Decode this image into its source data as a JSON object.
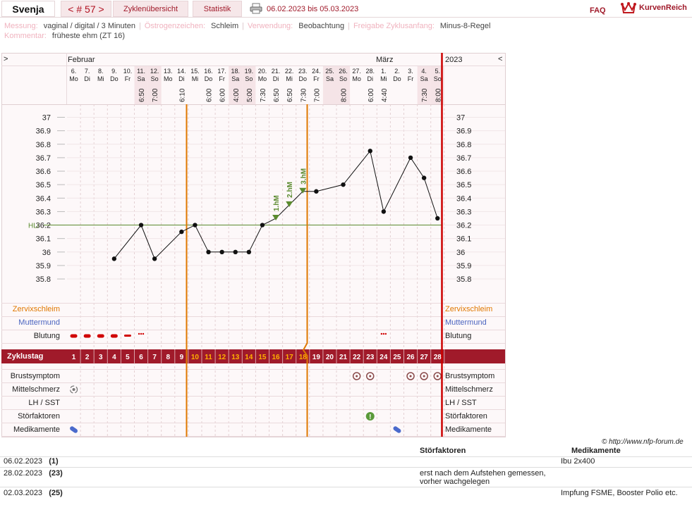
{
  "header": {
    "user": "Svenja",
    "cycle_nav": "< # 57 >",
    "tab_overview": "Zyklenübersicht",
    "tab_stats": "Statistik",
    "date_range": "06.02.2023 bis 05.03.2023",
    "faq": "FAQ",
    "brand": "KurvenReich"
  },
  "info": {
    "messung_label": "Messung:",
    "messung_value": "vaginal / digital / 3 Minuten",
    "oestrogen_label": "Östrogenzeichen:",
    "oestrogen_value": "Schleim",
    "verwendung_label": "Verwendung:",
    "verwendung_value": "Beobachtung",
    "freigabe_label": "Freigabe Zyklusanfang:",
    "freigabe_value": "Minus-8-Regel",
    "kommentar_label": "Kommentar:",
    "kommentar_value": "früheste ehm (ZT 16)"
  },
  "chart_nav": {
    "prev": ">",
    "next": "<",
    "year": "2023"
  },
  "months": [
    "Februar",
    "März"
  ],
  "colors": {
    "accent": "#a01a2a",
    "coverline": "#5a8a2e",
    "marker": "#e07800",
    "bleeding": "#d00000",
    "weekend": "#f5e4e7"
  },
  "days": [
    {
      "date": "6.",
      "wd": "Mo",
      "time": "",
      "cd": "1"
    },
    {
      "date": "7.",
      "wd": "Di",
      "time": "",
      "cd": "2"
    },
    {
      "date": "8.",
      "wd": "Mi",
      "time": "",
      "cd": "3"
    },
    {
      "date": "9.",
      "wd": "Do",
      "time": "",
      "cd": "4"
    },
    {
      "date": "10.",
      "wd": "Fr",
      "time": "",
      "cd": "5"
    },
    {
      "date": "11.",
      "wd": "Sa",
      "time": "6:50",
      "cd": "6"
    },
    {
      "date": "12.",
      "wd": "So",
      "time": "7:00",
      "cd": "7"
    },
    {
      "date": "13.",
      "wd": "Mo",
      "time": "",
      "cd": "8"
    },
    {
      "date": "14.",
      "wd": "Di",
      "time": "6:10",
      "cd": "9"
    },
    {
      "date": "15.",
      "wd": "Mi",
      "time": "",
      "cd": "10"
    },
    {
      "date": "16.",
      "wd": "Do",
      "time": "6:00",
      "cd": "11"
    },
    {
      "date": "17.",
      "wd": "Fr",
      "time": "6:00",
      "cd": "12"
    },
    {
      "date": "18.",
      "wd": "Sa",
      "time": "4:00",
      "cd": "13"
    },
    {
      "date": "19.",
      "wd": "So",
      "time": "5:00",
      "cd": "14"
    },
    {
      "date": "20.",
      "wd": "Mo",
      "time": "7:30",
      "cd": "15"
    },
    {
      "date": "21.",
      "wd": "Di",
      "time": "6:50",
      "cd": "16"
    },
    {
      "date": "22.",
      "wd": "Mi",
      "time": "6:50",
      "cd": "17"
    },
    {
      "date": "23.",
      "wd": "Do",
      "time": "7:30",
      "cd": "18"
    },
    {
      "date": "24.",
      "wd": "Fr",
      "time": "7:00",
      "cd": "19"
    },
    {
      "date": "25.",
      "wd": "Sa",
      "time": "",
      "cd": "20"
    },
    {
      "date": "26.",
      "wd": "So",
      "time": "8:00",
      "cd": "21"
    },
    {
      "date": "27.",
      "wd": "Mo",
      "time": "",
      "cd": "22"
    },
    {
      "date": "28.",
      "wd": "Di",
      "time": "6:00",
      "cd": "23"
    },
    {
      "date": "1.",
      "wd": "Mi",
      "time": "4:40",
      "cd": "24"
    },
    {
      "date": "2.",
      "wd": "Do",
      "time": "",
      "cd": "25"
    },
    {
      "date": "3.",
      "wd": "Fr",
      "time": "",
      "cd": "26"
    },
    {
      "date": "4.",
      "wd": "Sa",
      "time": "7:30",
      "cd": "27"
    },
    {
      "date": "5.",
      "wd": "So",
      "time": "8:00",
      "cd": "28"
    }
  ],
  "chart_data": {
    "type": "line",
    "y_ticks": [
      "37",
      "36.9",
      "36.8",
      "36.7",
      "36.6",
      "36.5",
      "36.4",
      "36.3",
      "36.2",
      "36.1",
      "36",
      "35.9",
      "35.8"
    ],
    "ylim": [
      35.8,
      37.0
    ],
    "coverline_label": "HLi",
    "coverline": 36.2,
    "series": [
      {
        "values": [
          null,
          null,
          null,
          35.95,
          null,
          36.2,
          35.95,
          null,
          36.15,
          36.2,
          36.0,
          36.0,
          36.0,
          36.0,
          36.2,
          36.25,
          36.35,
          36.45,
          36.45,
          null,
          36.5,
          null,
          36.75,
          36.3,
          null,
          36.7,
          36.55,
          36.25
        ]
      }
    ],
    "higher_measurements": [
      {
        "day": 16,
        "label": "1.hM"
      },
      {
        "day": 17,
        "label": "2.hM"
      },
      {
        "day": 18,
        "label": "3.hM"
      }
    ]
  },
  "rows": {
    "zervix": "Zervixschleim",
    "muttermund": "Muttermund",
    "blutung": "Blutung",
    "zyklustag": "Zyklustag",
    "brust": "Brustsymptom",
    "mittel": "Mittelschmerz",
    "lh": "LH / SST",
    "stoer": "Störfaktoren",
    "medi": "Medikamente"
  },
  "copyright": "© http://www.nfp-forum.de",
  "notes": {
    "col_stoer": "Störfaktoren",
    "col_medi": "Medikamente",
    "entries": [
      {
        "date": "06.02.2023",
        "cd": "(1)",
        "stoer": "",
        "medi": "Ibu 2x400"
      },
      {
        "date": "28.02.2023",
        "cd": "(23)",
        "stoer": "erst nach dem Aufstehen gemessen, vorher wachgelegen",
        "medi": ""
      },
      {
        "date": "02.03.2023",
        "cd": "(25)",
        "stoer": "",
        "medi": "Impfung FSME, Booster Polio etc."
      }
    ]
  }
}
